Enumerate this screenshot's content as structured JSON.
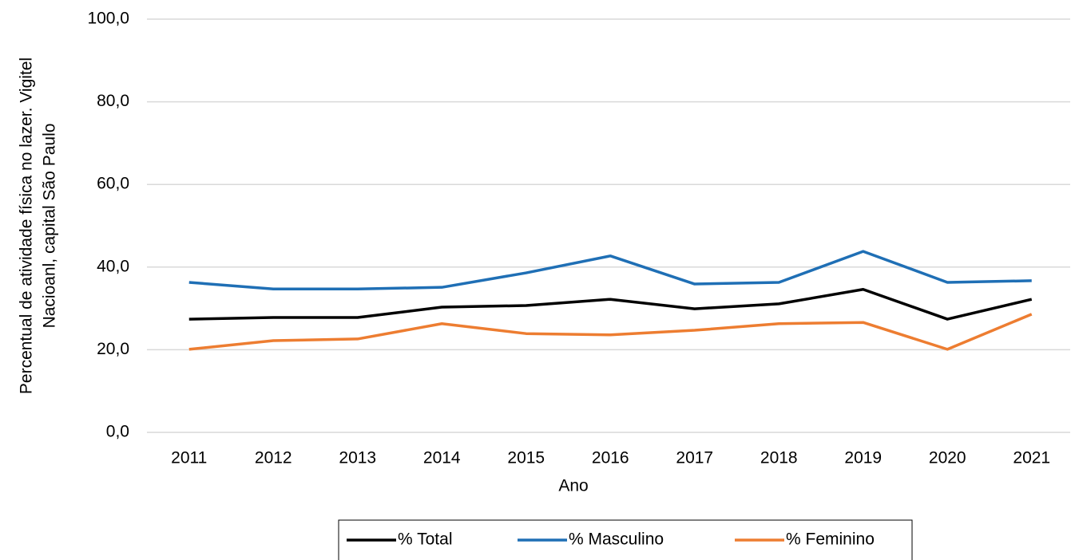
{
  "chart_data": {
    "type": "line",
    "x_label": "Ano",
    "y_label": [
      "Percentual de atividade física no lazer. Vigitel",
      "Nacioanl, capital São Paulo"
    ],
    "categories": [
      "2011",
      "2012",
      "2013",
      "2014",
      "2015",
      "2016",
      "2017",
      "2018",
      "2019",
      "2020",
      "2021"
    ],
    "series": [
      {
        "name": "% Total",
        "color": "#000000",
        "values": [
          27.4,
          27.8,
          27.8,
          30.3,
          30.7,
          32.2,
          29.9,
          31.1,
          34.6,
          27.4,
          32.2
        ]
      },
      {
        "name": "% Masculino",
        "color": "#1f6fb5",
        "values": [
          36.3,
          34.7,
          34.7,
          35.1,
          38.6,
          42.7,
          35.9,
          36.3,
          43.8,
          36.3,
          36.7
        ]
      },
      {
        "name": "% Feminino",
        "color": "#ed7d31",
        "values": [
          20.1,
          22.2,
          22.6,
          26.3,
          23.9,
          23.6,
          24.7,
          26.3,
          26.6,
          20.1,
          28.6
        ]
      }
    ],
    "ylim": [
      0,
      100
    ],
    "yticks": [
      {
        "value": 0,
        "label": "0,0"
      },
      {
        "value": 20,
        "label": "20,0"
      },
      {
        "value": 40,
        "label": "40,0"
      },
      {
        "value": 60,
        "label": "60,0"
      },
      {
        "value": 80,
        "label": "80,0"
      },
      {
        "value": 100,
        "label": "100,0"
      }
    ],
    "grid": true,
    "legend": "bottom"
  }
}
